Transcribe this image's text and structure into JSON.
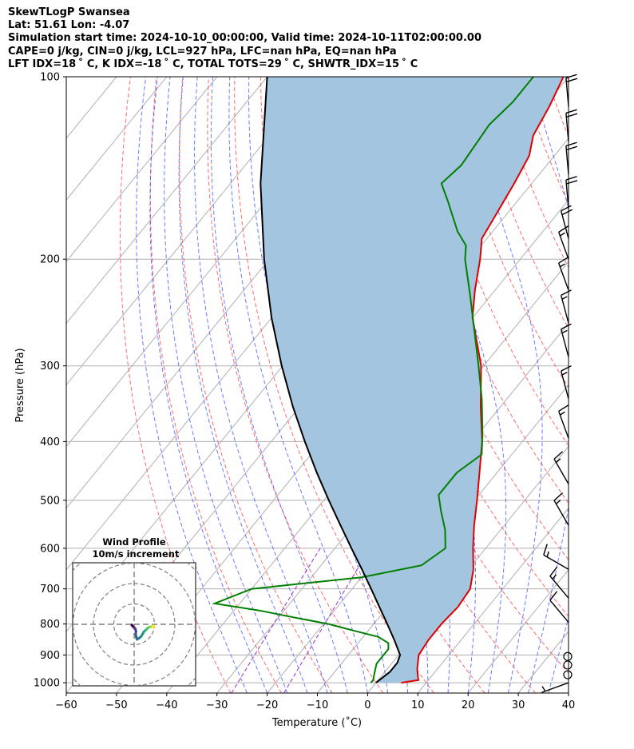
{
  "header": {
    "line1": "SkewTLogP Swansea",
    "line2": "Lat: 51.61   Lon: -4.07",
    "line3": "Simulation start time: 2024-10-10_00:00:00, Valid time: 2024-10-11T02:00:00.00",
    "line4": "CAPE=0 j/kg, CIN=0 j/kg, LCL=927 hPa, LFC=nan hPa, EQ=nan hPa",
    "line5": "LFT IDX=18 ˚ C, K IDX=-18 ˚ C, TOTAL TOTS=29 ˚ C, SHWTR_IDX=15 ˚ C"
  },
  "chart_data": {
    "type": "line",
    "diagram": "skew-T log-P",
    "xlabel": "Temperature (˚C)",
    "ylabel": "Pressure (hPa)",
    "xlim": [
      -60,
      40
    ],
    "ylim": [
      1040,
      100
    ],
    "y_scale": "log",
    "x_ticks": [
      "−60",
      "−50",
      "−40",
      "−30",
      "−20",
      "−10",
      "0",
      "10",
      "20",
      "30",
      "40"
    ],
    "y_ticks": [
      "100",
      "200",
      "300",
      "400",
      "500",
      "600",
      "700",
      "800",
      "900",
      "1000"
    ],
    "grid": true,
    "series": [
      {
        "color": "#e00000",
        "points": [
          [
            1000,
            5.0
          ],
          [
            990,
            8.0
          ],
          [
            980,
            7.5
          ],
          [
            950,
            6.0
          ],
          [
            900,
            4.0
          ],
          [
            850,
            3.5
          ],
          [
            800,
            3.5
          ],
          [
            750,
            4.0
          ],
          [
            700,
            3.5
          ],
          [
            650,
            1.0
          ],
          [
            600,
            -2.5
          ],
          [
            550,
            -6.0
          ],
          [
            500,
            -9.5
          ],
          [
            450,
            -13.5
          ],
          [
            400,
            -18.0
          ],
          [
            350,
            -24.0
          ],
          [
            300,
            -30.5
          ],
          [
            275,
            -35.0
          ],
          [
            250,
            -40.0
          ],
          [
            225,
            -44.0
          ],
          [
            200,
            -48.0
          ],
          [
            185,
            -51.0
          ],
          [
            170,
            -52.0
          ],
          [
            150,
            -53.5
          ],
          [
            135,
            -55.0
          ],
          [
            125,
            -57.5
          ],
          [
            112,
            -59.0
          ],
          [
            100,
            -61.0
          ]
        ]
      },
      {
        "color": "#008000",
        "points": [
          [
            1000,
            -1.0
          ],
          [
            990,
            -1.0
          ],
          [
            960,
            -2.0
          ],
          [
            930,
            -3.0
          ],
          [
            900,
            -3.0
          ],
          [
            880,
            -3.0
          ],
          [
            860,
            -4.0
          ],
          [
            840,
            -7.0
          ],
          [
            820,
            -13.0
          ],
          [
            800,
            -19.0
          ],
          [
            780,
            -27.0
          ],
          [
            760,
            -35.0
          ],
          [
            740,
            -45.0
          ],
          [
            700,
            -40.0
          ],
          [
            670,
            -20.0
          ],
          [
            640,
            -10.0
          ],
          [
            600,
            -8.0
          ],
          [
            560,
            -11.0
          ],
          [
            520,
            -15.0
          ],
          [
            490,
            -18.0
          ],
          [
            450,
            -18.0
          ],
          [
            420,
            -16.0
          ],
          [
            390,
            -19.0
          ],
          [
            340,
            -25.0
          ],
          [
            300,
            -31.0
          ],
          [
            260,
            -38.0
          ],
          [
            230,
            -44.0
          ],
          [
            200,
            -51.0
          ],
          [
            190,
            -53.0
          ],
          [
            180,
            -57.0
          ],
          [
            160,
            -64.0
          ],
          [
            150,
            -68.0
          ],
          [
            140,
            -67.0
          ],
          [
            120,
            -68.0
          ],
          [
            110,
            -67.0
          ],
          [
            100,
            -67.0
          ]
        ]
      },
      {
        "color": "#000000",
        "points": [
          [
            1000,
            0.0
          ],
          [
            960,
            1.0
          ],
          [
            927,
            1.0
          ],
          [
            900,
            0.3
          ],
          [
            850,
            -3.3
          ],
          [
            800,
            -7.3
          ],
          [
            750,
            -11.6
          ],
          [
            700,
            -16.2
          ],
          [
            650,
            -21.2
          ],
          [
            600,
            -26.7
          ],
          [
            550,
            -32.6
          ],
          [
            500,
            -39.0
          ],
          [
            450,
            -45.9
          ],
          [
            400,
            -53.3
          ],
          [
            350,
            -61.4
          ],
          [
            300,
            -70.2
          ],
          [
            250,
            -80.0
          ],
          [
            200,
            -91.0
          ],
          [
            150,
            -104.0
          ],
          [
            100,
            -120.0
          ]
        ]
      }
    ],
    "cape_shading": "#a3c5df",
    "wind_barbs": [
      {
        "p": 1000,
        "dir": 250,
        "spd": 5
      },
      {
        "p": 970,
        "dir": 0,
        "spd": 0
      },
      {
        "p": 935,
        "dir": 0,
        "spd": 0
      },
      {
        "p": 905,
        "dir": 0,
        "spd": 0
      },
      {
        "p": 795,
        "dir": 320,
        "spd": 10
      },
      {
        "p": 725,
        "dir": 320,
        "spd": 15
      },
      {
        "p": 650,
        "dir": 300,
        "spd": 15
      },
      {
        "p": 550,
        "dir": 330,
        "spd": 15
      },
      {
        "p": 470,
        "dir": 330,
        "spd": 15
      },
      {
        "p": 395,
        "dir": 340,
        "spd": 15
      },
      {
        "p": 340,
        "dir": 345,
        "spd": 15
      },
      {
        "p": 290,
        "dir": 345,
        "spd": 15
      },
      {
        "p": 255,
        "dir": 345,
        "spd": 15
      },
      {
        "p": 225,
        "dir": 340,
        "spd": 15
      },
      {
        "p": 200,
        "dir": 340,
        "spd": 15
      },
      {
        "p": 185,
        "dir": 345,
        "spd": 20
      },
      {
        "p": 165,
        "dir": 355,
        "spd": 20
      },
      {
        "p": 145,
        "dir": 355,
        "spd": 20
      },
      {
        "p": 128,
        "dir": 355,
        "spd": 20
      },
      {
        "p": 112,
        "dir": 355,
        "spd": 20
      }
    ],
    "hodograph": {
      "title": "Wind Profile",
      "subtitle": "10m/s increment",
      "rings_mps": [
        10,
        20,
        30,
        40
      ],
      "trace_uv": [
        [
          -1.0,
          -0.4
        ],
        [
          -0.8,
          -0.9
        ],
        [
          -0.4,
          -1.2
        ],
        [
          0.0,
          -1.6
        ],
        [
          0.4,
          -2.0
        ],
        [
          0.6,
          -2.3
        ],
        [
          0.9,
          -3.5
        ],
        [
          0.8,
          -4.6
        ],
        [
          0.9,
          -5.8
        ],
        [
          1.1,
          -6.5
        ],
        [
          1.4,
          -7.4
        ],
        [
          2.3,
          -6.9
        ],
        [
          3.4,
          -6.0
        ],
        [
          4.2,
          -4.7
        ],
        [
          4.7,
          -3.7
        ],
        [
          5.2,
          -3.2
        ],
        [
          5.8,
          -2.8
        ],
        [
          6.2,
          -2.3
        ],
        [
          6.6,
          -1.9
        ],
        [
          7.4,
          -1.4
        ],
        [
          8.1,
          -1.2
        ],
        [
          8.9,
          -1.0
        ],
        [
          9.5,
          -0.7
        ],
        [
          9.7,
          -0.9
        ],
        [
          9.3,
          -1.5
        ],
        [
          9.1,
          -1.1
        ]
      ],
      "trace_start": [
        -1.6,
        0.0
      ],
      "colormap": "viridis"
    }
  }
}
